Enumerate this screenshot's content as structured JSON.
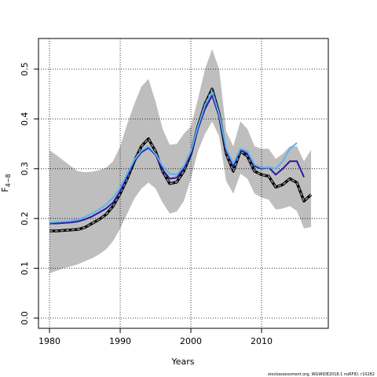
{
  "chart_data": {
    "type": "line",
    "xlabel": "Years",
    "ylabel": "F",
    "ylabel_sub": "4−8",
    "footer": "stockassessment.org, WGWIDE2018.1 noRFID, r10282",
    "x": [
      1980,
      1981,
      1982,
      1983,
      1984,
      1985,
      1986,
      1987,
      1988,
      1989,
      1990,
      1991,
      1992,
      1993,
      1994,
      1995,
      1996,
      1997,
      1998,
      1999,
      2000,
      2001,
      2002,
      2003,
      2004,
      2005,
      2006,
      2007,
      2008,
      2009,
      2010,
      2011,
      2012,
      2013,
      2014,
      2015,
      2016,
      2017
    ],
    "band": {
      "color": "#bebebe",
      "upper": [
        0.337,
        0.327,
        0.316,
        0.305,
        0.295,
        0.293,
        0.294,
        0.297,
        0.302,
        0.315,
        0.345,
        0.39,
        0.43,
        0.465,
        0.48,
        0.435,
        0.38,
        0.348,
        0.35,
        0.37,
        0.385,
        0.44,
        0.5,
        0.54,
        0.5,
        0.375,
        0.345,
        0.395,
        0.38,
        0.345,
        0.34,
        0.34,
        0.32,
        0.33,
        0.345,
        0.345,
        0.315,
        0.338
      ],
      "lower": [
        0.09,
        0.095,
        0.1,
        0.104,
        0.108,
        0.114,
        0.12,
        0.128,
        0.138,
        0.155,
        0.18,
        0.21,
        0.24,
        0.26,
        0.272,
        0.26,
        0.232,
        0.21,
        0.214,
        0.235,
        0.28,
        0.335,
        0.37,
        0.395,
        0.365,
        0.275,
        0.25,
        0.29,
        0.28,
        0.25,
        0.242,
        0.238,
        0.218,
        0.22,
        0.225,
        0.215,
        0.18,
        0.183
      ]
    },
    "series": [
      {
        "color": "#000000",
        "dash_color": "#9a9a9a",
        "values": [
          0.175,
          0.175,
          0.176,
          0.177,
          0.178,
          0.182,
          0.19,
          0.198,
          0.208,
          0.225,
          0.25,
          0.28,
          0.315,
          0.345,
          0.36,
          0.335,
          0.295,
          0.27,
          0.273,
          0.295,
          0.33,
          0.385,
          0.43,
          0.46,
          0.41,
          0.33,
          0.295,
          0.335,
          0.325,
          0.295,
          0.288,
          0.285,
          0.263,
          0.268,
          0.28,
          0.272,
          0.235,
          0.248
        ]
      },
      {
        "color": "#2a1aa0",
        "values": [
          0.19,
          0.19,
          0.191,
          0.192,
          0.194,
          0.198,
          0.204,
          0.212,
          0.22,
          0.232,
          0.255,
          0.285,
          0.315,
          0.333,
          0.342,
          0.328,
          0.298,
          0.28,
          0.282,
          0.3,
          0.33,
          0.38,
          0.42,
          0.447,
          0.405,
          0.335,
          0.305,
          0.338,
          0.33,
          0.305,
          0.3,
          0.303,
          0.288,
          0.3,
          0.315,
          0.315,
          0.283,
          null
        ]
      },
      {
        "color": "#5ab4f0",
        "values": [
          0.192,
          0.193,
          0.194,
          0.195,
          0.198,
          0.203,
          0.21,
          0.218,
          0.228,
          0.242,
          0.262,
          0.29,
          0.318,
          0.336,
          0.345,
          0.33,
          0.305,
          0.29,
          0.288,
          0.305,
          0.335,
          0.385,
          0.428,
          0.455,
          0.41,
          0.34,
          0.31,
          0.34,
          0.335,
          0.308,
          0.302,
          0.303,
          0.3,
          0.315,
          0.34,
          0.352,
          null,
          null
        ]
      }
    ],
    "xlim": [
      1978.44,
      2019.44
    ],
    "ylim": [
      -0.0205,
      0.5615
    ],
    "xticks": [
      1980,
      1990,
      2000,
      2010
    ],
    "yticks": [
      {
        "value": 0,
        "label": "0.0"
      },
      0.1,
      0.2,
      0.3,
      0.4,
      0.5
    ],
    "grid": true
  }
}
